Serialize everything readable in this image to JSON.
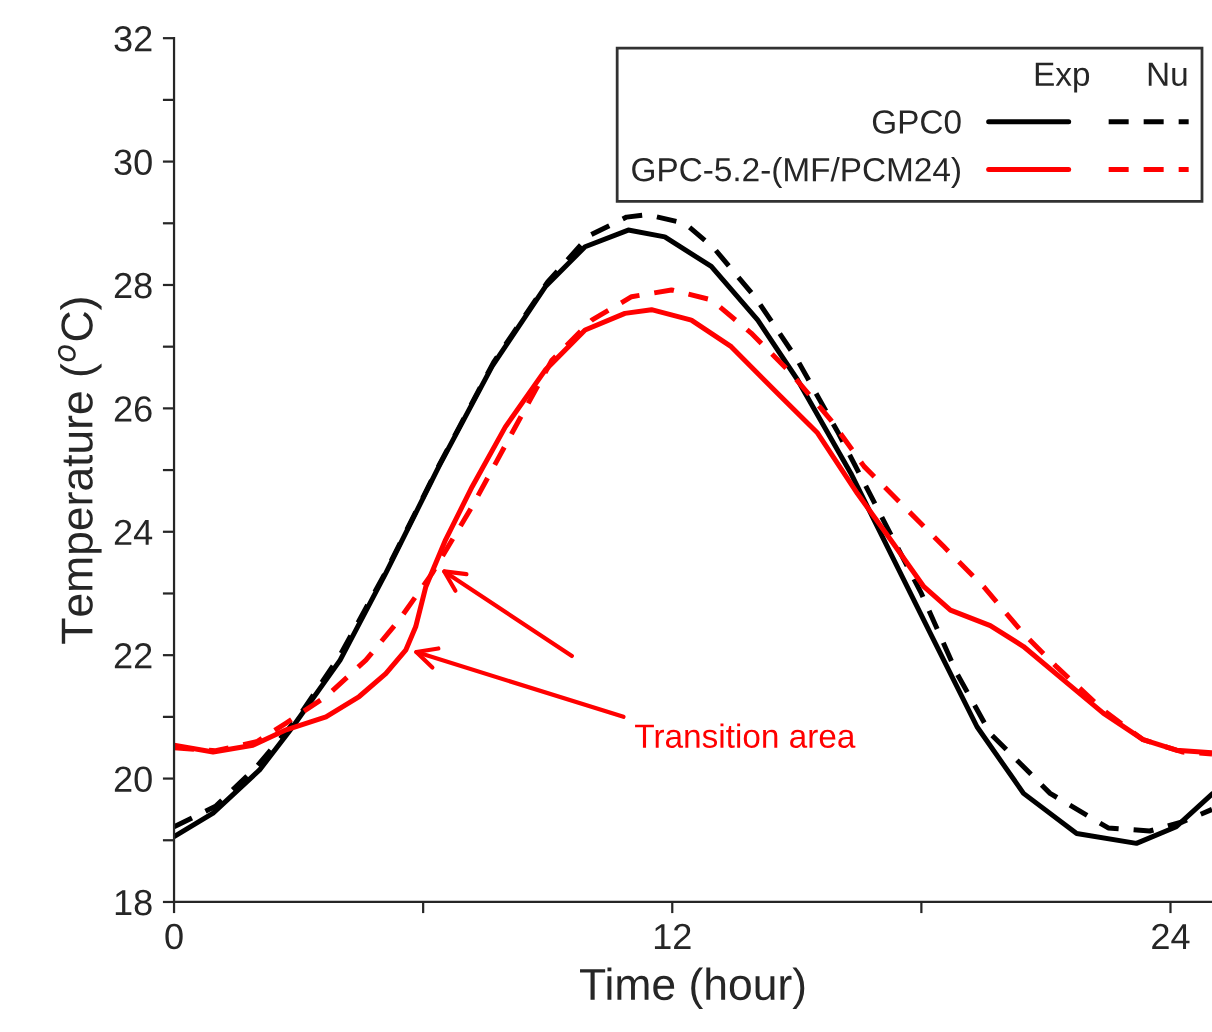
{
  "chart_data": {
    "type": "line",
    "xlabel": "Time (hour)",
    "ylabel": "Temperature ($^{o}$C)",
    "xlim": [
      0,
      25
    ],
    "xticks": [
      0,
      {
        "value": 6,
        "label": null
      },
      12,
      {
        "value": 18,
        "label": null
      },
      24
    ],
    "ylim": [
      18,
      32
    ],
    "yticks": [
      18,
      {
        "value": 19,
        "label": null
      },
      20,
      {
        "value": 21,
        "label": null
      },
      22,
      {
        "value": 23,
        "label": null
      },
      24,
      {
        "value": 25,
        "label": null
      },
      26,
      {
        "value": 27,
        "label": null
      },
      28,
      {
        "value": 29,
        "label": null
      },
      30,
      {
        "value": 31,
        "label": null
      },
      32
    ],
    "grid": false,
    "legend": "top right",
    "series": [
      {
        "name": "GPC0",
        "color": "#000000",
        "line_style": "solid",
        "x": [
          0,
          0.94,
          2.06,
          2.86,
          4.0,
          5.1,
          6.38,
          7.66,
          8.94,
          9.9,
          10.94,
          11.82,
          12.94,
          14.06,
          15.02,
          16.3,
          17.26,
          18.22,
          19.34,
          20.46,
          21.74,
          23.18,
          24.14,
          25.0
        ],
        "values": [
          19.06,
          19.44,
          20.14,
          20.84,
          21.92,
          23.33,
          25.06,
          26.68,
          27.97,
          28.62,
          28.89,
          28.78,
          28.3,
          27.43,
          26.46,
          24.95,
          23.65,
          22.35,
          20.84,
          19.76,
          19.11,
          18.95,
          19.22,
          19.75
        ]
      },
      {
        "color": "#000000",
        "line_style": "dashed",
        "x": [
          0,
          1.0,
          2.0,
          3.0,
          4.0,
          5.1,
          6.4,
          7.7,
          9.0,
          10.0,
          10.9,
          11.4,
          12.3,
          13.0,
          14.0,
          15.0,
          16.0,
          17.0,
          18.0,
          18.86,
          19.66,
          21.1,
          22.5,
          23.5,
          24.3,
          25.0
        ],
        "values": [
          19.22,
          19.55,
          20.2,
          21.0,
          22.0,
          23.35,
          25.1,
          26.75,
          28.05,
          28.8,
          29.1,
          29.14,
          29.0,
          28.6,
          27.8,
          26.8,
          25.6,
          24.3,
          23.0,
          21.7,
          20.73,
          19.76,
          19.2,
          19.15,
          19.3,
          19.5
        ]
      },
      {
        "name": "GPC-5.2-(MF/PCM24)",
        "color": "#ff0000",
        "line_style": "solid",
        "x": [
          0,
          0.94,
          1.9,
          2.7,
          3.66,
          4.46,
          5.1,
          5.58,
          5.82,
          6.06,
          6.54,
          7.18,
          7.98,
          8.94,
          9.9,
          10.86,
          11.5,
          12.46,
          13.42,
          14.54,
          15.5,
          16.46,
          17.26,
          18.06,
          18.7,
          19.66,
          20.46,
          21.42,
          22.38,
          23.34,
          24.14,
          25.0
        ],
        "values": [
          20.54,
          20.43,
          20.54,
          20.79,
          21.0,
          21.33,
          21.7,
          22.08,
          22.46,
          23.1,
          23.87,
          24.73,
          25.7,
          26.62,
          27.27,
          27.54,
          27.6,
          27.43,
          27.0,
          26.24,
          25.6,
          24.62,
          23.87,
          23.11,
          22.73,
          22.48,
          22.14,
          21.6,
          21.06,
          20.63,
          20.46,
          20.42
        ]
      },
      {
        "color": "#ff0000",
        "line_style": "dashed",
        "x": [
          0,
          1.0,
          2.0,
          2.7,
          3.66,
          4.62,
          5.42,
          6.22,
          7.18,
          8.14,
          9.1,
          10.06,
          11.02,
          11.98,
          12.94,
          13.9,
          14.86,
          15.82,
          16.62,
          17.58,
          18.54,
          19.5,
          20.46,
          21.26,
          22.38,
          23.34,
          24.3,
          25.0
        ],
        "values": [
          20.5,
          20.45,
          20.6,
          20.9,
          21.33,
          21.92,
          22.57,
          23.33,
          24.41,
          25.6,
          26.78,
          27.43,
          27.81,
          27.92,
          27.76,
          27.22,
          26.57,
          25.81,
          25.06,
          24.41,
          23.76,
          23.11,
          22.35,
          21.81,
          21.11,
          20.63,
          20.43,
          20.4
        ]
      }
    ],
    "annotations": [
      "Exp",
      "Nu",
      {
        "text": "Transition area",
        "x": 5.6,
        "y": 22.1
      }
    ]
  }
}
